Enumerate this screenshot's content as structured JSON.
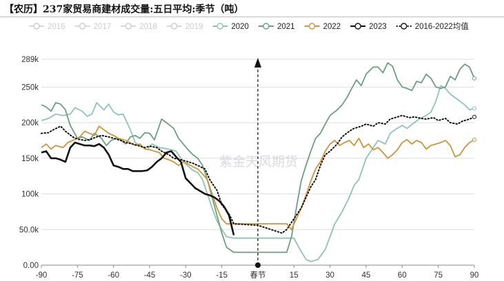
{
  "title": "【农历】237家贸易商建材成交量:五日平均:季节（吨）",
  "watermark": "紫金天风期货",
  "chart_data": {
    "type": "line",
    "title": "【农历】237家贸易商建材成交量:五日平均:季节（吨）",
    "xlabel": "",
    "ylabel": "",
    "xlim": [
      -90,
      90
    ],
    "ylim": [
      0,
      289000
    ],
    "grid": true,
    "legend_position": "top",
    "x_ticks": [
      -90,
      -75,
      -60,
      -45,
      -30,
      -15,
      0,
      15,
      30,
      45,
      60,
      75,
      90
    ],
    "x_tick_labels": [
      "-90",
      "-75",
      "-60",
      "-45",
      "-30",
      "-15",
      "春节",
      "15",
      "30",
      "45",
      "60",
      "75",
      "90"
    ],
    "y_ticks": [
      0,
      50000,
      100000,
      150000,
      200000,
      250000,
      289000
    ],
    "y_tick_labels": [
      "0.00",
      "50.0k",
      "100k",
      "150k",
      "200k",
      "250k",
      "289k"
    ],
    "annotation": "arrow at 春节 (x=0)",
    "series": [
      {
        "name": "2016",
        "color": "#cccccc",
        "visible": false,
        "values": []
      },
      {
        "name": "2017",
        "color": "#cccccc",
        "visible": false,
        "values": []
      },
      {
        "name": "2018",
        "color": "#cccccc",
        "visible": false,
        "values": []
      },
      {
        "name": "2019",
        "color": "#cccccc",
        "visible": false,
        "values": []
      },
      {
        "name": "2020",
        "color": "#8fc4ae",
        "style": "solid",
        "x": [
          -90,
          -87,
          -84,
          -81,
          -78,
          -76,
          -73,
          -71,
          -69,
          -67,
          -64,
          -62,
          -60,
          -58,
          -56,
          -53,
          -51,
          -48,
          -46,
          -44,
          -41,
          -39,
          -36,
          -34,
          -32,
          -30,
          -27,
          -25,
          -23,
          -21,
          -19,
          -17,
          -15,
          -13,
          -10,
          0,
          15,
          17,
          20,
          22,
          25,
          28,
          30,
          32,
          35,
          38,
          40,
          42,
          45,
          47,
          50,
          53,
          55,
          57,
          60,
          62,
          65,
          67,
          70,
          72,
          74,
          76,
          78,
          80,
          82,
          84,
          86,
          88,
          90
        ],
        "values": [
          203000,
          206000,
          212000,
          210000,
          212000,
          221000,
          216000,
          209000,
          212000,
          228000,
          218000,
          226000,
          215000,
          211000,
          212000,
          190000,
          172000,
          166000,
          162000,
          170000,
          165000,
          164000,
          162000,
          160000,
          150000,
          142000,
          133000,
          130000,
          120000,
          100000,
          80000,
          62000,
          50000,
          40000,
          38000,
          38000,
          38000,
          25000,
          8000,
          5000,
          8000,
          22000,
          40000,
          58000,
          75000,
          95000,
          112000,
          120000,
          150000,
          160000,
          175000,
          170000,
          185000,
          190000,
          196000,
          192000,
          200000,
          205000,
          210000,
          215000,
          230000,
          252000,
          248000,
          240000,
          235000,
          230000,
          225000,
          218000,
          220000
        ]
      },
      {
        "name": "2021",
        "color": "#6b9e83",
        "style": "solid",
        "x": [
          -90,
          -88,
          -86,
          -84,
          -82,
          -80,
          -78,
          -75,
          -73,
          -70,
          -68,
          -65,
          -63,
          -61,
          -59,
          -57,
          -55,
          -53,
          -51,
          -49,
          -47,
          -45,
          -43,
          -40,
          -38,
          -35,
          -33,
          -31,
          -29,
          -27,
          -25,
          -23,
          -21,
          -19,
          -17,
          -15,
          -13,
          -10,
          0,
          12,
          14,
          16,
          18,
          20,
          22,
          24,
          26,
          28,
          30,
          33,
          35,
          37,
          39,
          41,
          43,
          45,
          47,
          48,
          50,
          52,
          54,
          56,
          58,
          60,
          62,
          64,
          66,
          68,
          70,
          72,
          74,
          76,
          78,
          80,
          82,
          84,
          86,
          88,
          90
        ],
        "values": [
          225000,
          222000,
          216000,
          228000,
          226000,
          218000,
          196000,
          178000,
          180000,
          175000,
          185000,
          178000,
          168000,
          175000,
          178000,
          176000,
          170000,
          180000,
          182000,
          178000,
          186000,
          185000,
          176000,
          205000,
          200000,
          192000,
          178000,
          170000,
          162000,
          155000,
          150000,
          140000,
          120000,
          95000,
          70000,
          45000,
          25000,
          18000,
          18000,
          18000,
          40000,
          80000,
          118000,
          140000,
          160000,
          178000,
          185000,
          198000,
          210000,
          218000,
          225000,
          235000,
          248000,
          260000,
          252000,
          268000,
          275000,
          278000,
          278000,
          270000,
          284000,
          279000,
          260000,
          250000,
          248000,
          245000,
          258000,
          256000,
          268000,
          262000,
          250000,
          248000,
          250000,
          265000,
          260000,
          275000,
          282000,
          278000,
          262000
        ]
      },
      {
        "name": "2022",
        "color": "#d19238",
        "style": "solid",
        "x": [
          -90,
          -88,
          -86,
          -84,
          -81,
          -79,
          -77,
          -74,
          -72,
          -70,
          -68,
          -66,
          -64,
          -62,
          -60,
          -58,
          -55,
          -53,
          -51,
          -49,
          -47,
          -45,
          -43,
          -41,
          -39,
          -37,
          -35,
          -33,
          -31,
          -29,
          -27,
          -25,
          -23,
          -21,
          -19,
          -17,
          -15,
          -13,
          0,
          12,
          14,
          16,
          18,
          20,
          22,
          24,
          26,
          28,
          30,
          32,
          34,
          36,
          38,
          40,
          42,
          44,
          46,
          48,
          50,
          52,
          54,
          56,
          58,
          60,
          62,
          64,
          66,
          68,
          70,
          72,
          74,
          76,
          78,
          80,
          82,
          84,
          86,
          88,
          90
        ],
        "values": [
          165000,
          170000,
          163000,
          168000,
          165000,
          172000,
          175000,
          180000,
          188000,
          185000,
          182000,
          195000,
          190000,
          185000,
          182000,
          178000,
          175000,
          172000,
          168000,
          170000,
          163000,
          162000,
          160000,
          158000,
          150000,
          148000,
          145000,
          140000,
          145000,
          142000,
          138000,
          135000,
          128000,
          120000,
          100000,
          80000,
          65000,
          58000,
          58000,
          58000,
          50000,
          65000,
          80000,
          98000,
          118000,
          135000,
          145000,
          160000,
          170000,
          175000,
          168000,
          172000,
          175000,
          168000,
          178000,
          165000,
          170000,
          162000,
          165000,
          158000,
          150000,
          155000,
          162000,
          172000,
          176000,
          170000,
          175000,
          172000,
          163000,
          168000,
          170000,
          172000,
          175000,
          168000,
          152000,
          155000,
          165000,
          172000,
          176000
        ]
      },
      {
        "name": "2023",
        "color": "#111111",
        "style": "solid",
        "x": [
          -90,
          -88,
          -86,
          -84,
          -82,
          -80,
          -78,
          -76,
          -74,
          -72,
          -70,
          -68,
          -66,
          -64,
          -62,
          -60,
          -58,
          -56,
          -54,
          -52,
          -50,
          -48,
          -46,
          -44,
          -42,
          -40,
          -38,
          -36,
          -34,
          -32,
          -30,
          -28,
          -26,
          -24,
          -22,
          -20,
          -18,
          -16,
          -14,
          -12,
          -10
        ],
        "values": [
          158000,
          160000,
          150000,
          150000,
          148000,
          145000,
          165000,
          172000,
          170000,
          168000,
          168000,
          167000,
          170000,
          165000,
          155000,
          140000,
          138000,
          135000,
          135000,
          132000,
          132000,
          132000,
          133000,
          138000,
          145000,
          150000,
          158000,
          160000,
          152000,
          145000,
          122000,
          115000,
          108000,
          104000,
          100000,
          98000,
          95000,
          90000,
          82000,
          70000,
          42000
        ]
      },
      {
        "name": "2016-2022均值",
        "color": "#111111",
        "style": "dotted",
        "x": [
          -90,
          -87,
          -85,
          -82,
          -80,
          -77,
          -75,
          -72,
          -70,
          -67,
          -65,
          -62,
          -60,
          -57,
          -55,
          -52,
          -50,
          -47,
          -45,
          -42,
          -40,
          -37,
          -35,
          -32,
          -30,
          -27,
          -25,
          -22,
          -20,
          -17,
          -15,
          -12,
          -10,
          0,
          10,
          12,
          14,
          16,
          18,
          20,
          22,
          24,
          26,
          28,
          30,
          33,
          35,
          38,
          40,
          43,
          45,
          48,
          50,
          53,
          55,
          58,
          60,
          63,
          65,
          68,
          70,
          73,
          75,
          78,
          80,
          83,
          85,
          88,
          90
        ],
        "values": [
          185000,
          186000,
          190000,
          195000,
          188000,
          180000,
          177000,
          175000,
          176000,
          180000,
          182000,
          180000,
          178000,
          175000,
          172000,
          170000,
          168000,
          165000,
          167000,
          165000,
          160000,
          155000,
          150000,
          148000,
          146000,
          143000,
          140000,
          135000,
          120000,
          105000,
          85000,
          72000,
          58000,
          56000,
          45000,
          50000,
          60000,
          70000,
          80000,
          95000,
          110000,
          120000,
          140000,
          155000,
          160000,
          170000,
          180000,
          188000,
          192000,
          195000,
          198000,
          195000,
          200000,
          198000,
          205000,
          208000,
          210000,
          207000,
          208000,
          206000,
          205000,
          207000,
          203000,
          206000,
          200000,
          198000,
          202000,
          205000,
          208000
        ]
      }
    ]
  },
  "legend": [
    {
      "label": "2016",
      "color": "#cccccc",
      "dotted": false
    },
    {
      "label": "2017",
      "color": "#cccccc",
      "dotted": false
    },
    {
      "label": "2018",
      "color": "#cccccc",
      "dotted": false
    },
    {
      "label": "2019",
      "color": "#cccccc",
      "dotted": false
    },
    {
      "label": "2020",
      "color": "#8fc4ae",
      "dotted": false
    },
    {
      "label": "2021",
      "color": "#6b9e83",
      "dotted": false
    },
    {
      "label": "2022",
      "color": "#d19238",
      "dotted": false
    },
    {
      "label": "2023",
      "color": "#111111",
      "dotted": false
    },
    {
      "label": "2016-2022均值",
      "color": "#111111",
      "dotted": true
    }
  ]
}
